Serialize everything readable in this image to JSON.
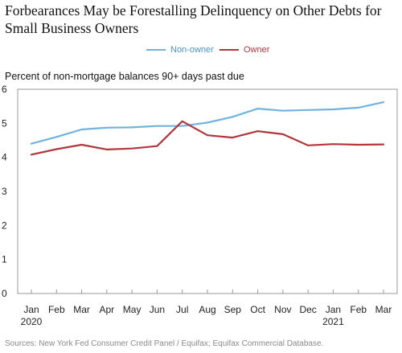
{
  "title": "Forbearances May be Forestalling Delinquency on Other Debts for Small Business Owners",
  "source": "Sources: New York Fed Consumer Credit Panel / Equifax; Equifax Commercial Database.",
  "colors": {
    "non_owner": "#6fb3de",
    "owner": "#b2363c",
    "frame": "#999999"
  },
  "chart_data": {
    "type": "line",
    "title": "Forbearances May be Forestalling Delinquency on Other Debts for Small Business Owners",
    "ylabel": "Percent of non-mortgage balances 90+ days past due",
    "xlabel": "",
    "ylim": [
      0,
      6
    ],
    "yticks": [
      "0",
      "1",
      "2",
      "3",
      "4",
      "5",
      "6"
    ],
    "categories": [
      "Jan",
      "Feb",
      "Mar",
      "Apr",
      "May",
      "Jun",
      "Jul",
      "Aug",
      "Sep",
      "Oct",
      "Nov",
      "Dec",
      "Jan",
      "Feb",
      "Mar"
    ],
    "category_years": [
      "2020",
      "",
      "",
      "",
      "",
      "",
      "",
      "",
      "",
      "",
      "",
      "",
      "2021",
      "",
      ""
    ],
    "grid": false,
    "legend_position": "top-center",
    "series": [
      {
        "name": "Non-owner",
        "color": "#6fb3de",
        "values": [
          4.4,
          4.6,
          4.82,
          4.87,
          4.88,
          4.92,
          4.92,
          5.02,
          5.19,
          5.43,
          5.37,
          5.39,
          5.41,
          5.46,
          5.62
        ]
      },
      {
        "name": "Owner",
        "color": "#b2363c",
        "values": [
          4.08,
          4.24,
          4.37,
          4.23,
          4.26,
          4.33,
          5.06,
          4.65,
          4.58,
          4.77,
          4.68,
          4.35,
          4.39,
          4.37,
          4.38
        ]
      }
    ]
  }
}
